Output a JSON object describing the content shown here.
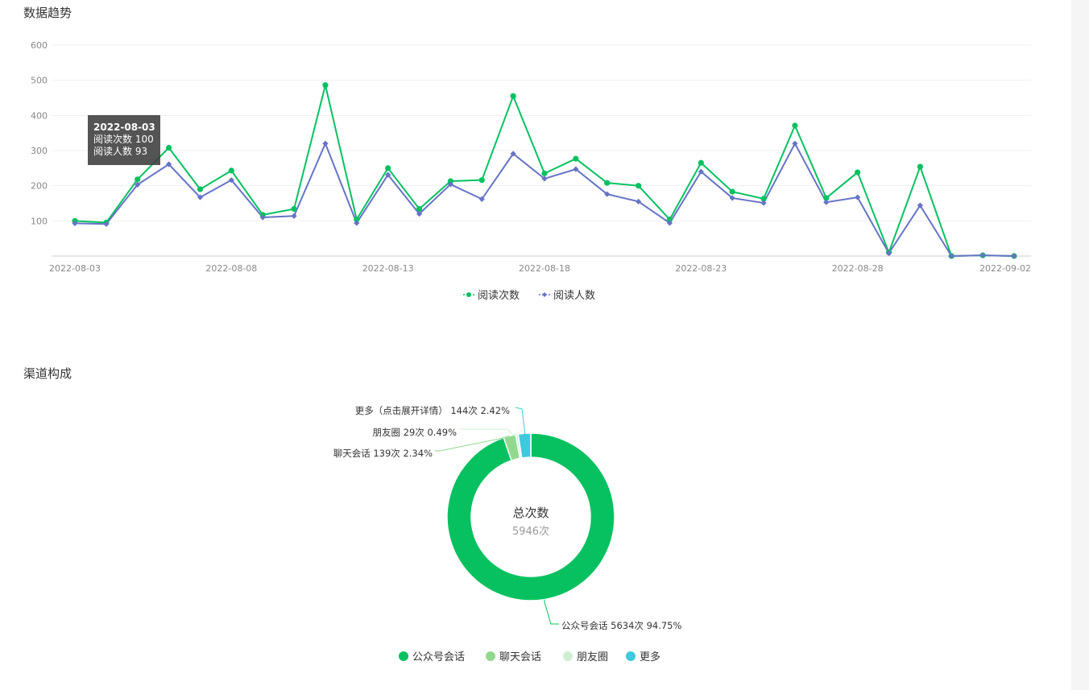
{
  "sections": {
    "trend_title": "数据趋势",
    "channel_title": "渠道构成"
  },
  "colors": {
    "series1": "#07c160",
    "series2": "#6773c6",
    "donut": [
      "#07c160",
      "#91d98f",
      "#cdf0d2",
      "#3fc9dc"
    ]
  },
  "tooltip": {
    "date": "2022-08-03",
    "line1": "阅读次数 100",
    "line2": "阅读人数 93"
  },
  "chart_data": [
    {
      "type": "line",
      "title": "数据趋势",
      "x": [
        "2022-08-03",
        "2022-08-04",
        "2022-08-05",
        "2022-08-06",
        "2022-08-07",
        "2022-08-08",
        "2022-08-09",
        "2022-08-10",
        "2022-08-11",
        "2022-08-12",
        "2022-08-13",
        "2022-08-14",
        "2022-08-15",
        "2022-08-16",
        "2022-08-17",
        "2022-08-18",
        "2022-08-19",
        "2022-08-20",
        "2022-08-21",
        "2022-08-22",
        "2022-08-23",
        "2022-08-24",
        "2022-08-25",
        "2022-08-26",
        "2022-08-27",
        "2022-08-28",
        "2022-08-29",
        "2022-08-30",
        "2022-08-31",
        "2022-09-01",
        "2022-09-02"
      ],
      "x_tick_labels": [
        "2022-08-03",
        "2022-08-08",
        "2022-08-13",
        "2022-08-18",
        "2022-08-23",
        "2022-08-28",
        "2022-09-02"
      ],
      "ylim": [
        0,
        600
      ],
      "y_ticks": [
        100,
        200,
        300,
        400,
        500,
        600
      ],
      "grid": true,
      "legend": "bottom-center",
      "series": [
        {
          "name": "阅读次数",
          "values": [
            100,
            95,
            218,
            308,
            190,
            243,
            117,
            134,
            486,
            104,
            250,
            134,
            213,
            216,
            455,
            235,
            277,
            208,
            200,
            104,
            265,
            183,
            163,
            371,
            165,
            238,
            10,
            254,
            0,
            2,
            0
          ]
        },
        {
          "name": "阅读人数",
          "values": [
            93,
            91,
            203,
            261,
            167,
            216,
            110,
            114,
            320,
            94,
            231,
            120,
            204,
            162,
            291,
            220,
            247,
            176,
            155,
            94,
            240,
            165,
            151,
            320,
            153,
            167,
            8,
            144,
            0,
            2,
            0
          ]
        }
      ]
    },
    {
      "type": "pie",
      "title": "渠道构成",
      "center_label": "总次数",
      "center_value": "5946次",
      "legend": "bottom-center",
      "slices": [
        {
          "name": "公众号会话",
          "value": 5634,
          "label": "公众号会话 5634次 94.75%"
        },
        {
          "name": "聊天会话",
          "value": 139,
          "label": "聊天会话 139次 2.34%"
        },
        {
          "name": "朋友圈",
          "value": 29,
          "label": "朋友圈 29次 0.49%"
        },
        {
          "name": "更多",
          "value": 144,
          "label": "更多（点击展开详情） 144次 2.42%"
        }
      ]
    }
  ]
}
